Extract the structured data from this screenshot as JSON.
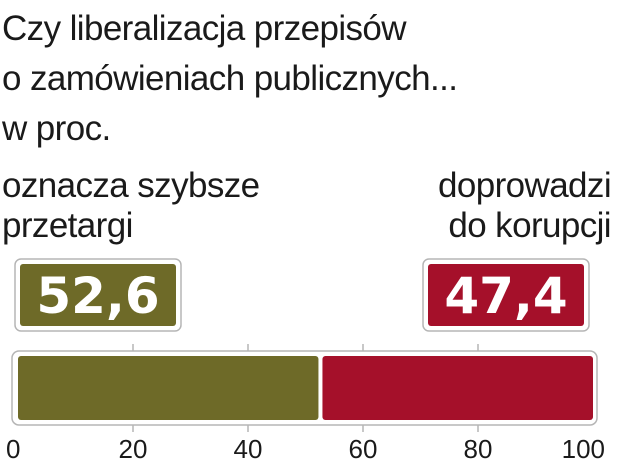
{
  "title_lines": [
    "Czy liberalizacja przepisów",
    "o zamówieniach publicznych...",
    "w proc."
  ],
  "chart_data": {
    "type": "bar",
    "orientation": "horizontal-stacked",
    "categories": [
      "oznacza szybsze przetargi",
      "doprowadzi do korupcji"
    ],
    "label_lines": [
      [
        "oznacza szybsze",
        "przetargi"
      ],
      [
        "doprowadzi",
        "do korupcji"
      ]
    ],
    "values": [
      52.6,
      47.4
    ],
    "value_labels": [
      "52,6",
      "47,4"
    ],
    "colors": [
      "#6e6a28",
      "#a5102a"
    ],
    "xlim": [
      0,
      100
    ],
    "ticks": [
      0,
      20,
      40,
      60,
      80,
      100
    ],
    "tick_labels": [
      "0",
      "20",
      "40",
      "60",
      "80",
      "100"
    ],
    "grid": false
  }
}
